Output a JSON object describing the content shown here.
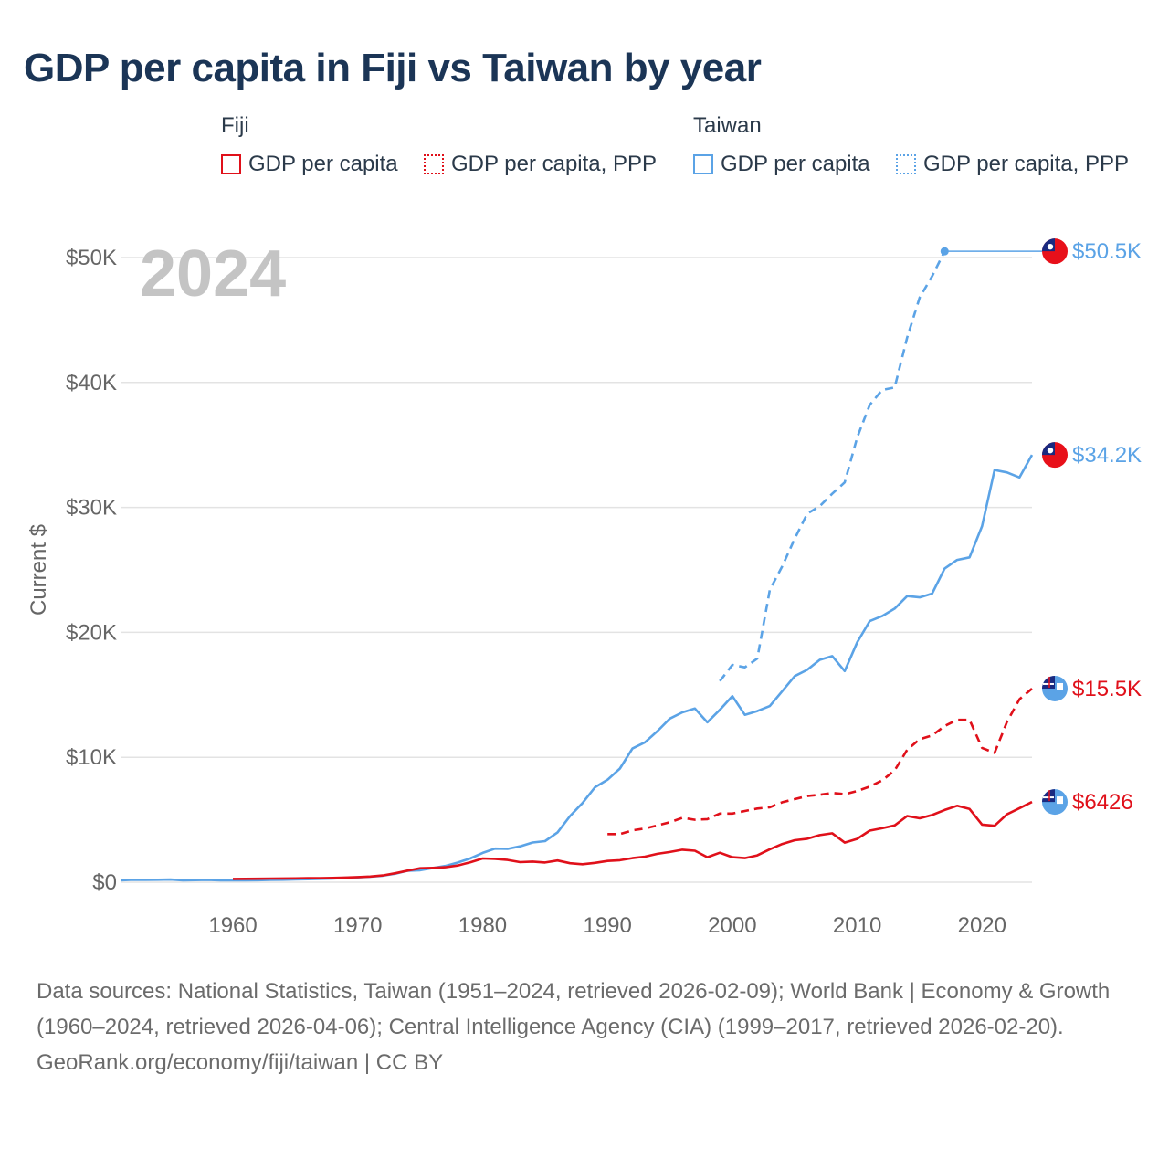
{
  "title": "GDP per capita in Fiji vs Taiwan by year",
  "legend": {
    "groups": [
      {
        "name": "Fiji",
        "color": "#e0101a",
        "items": [
          {
            "label": "GDP per capita",
            "style": "solid"
          },
          {
            "label": "GDP per capita, PPP",
            "style": "dotted"
          }
        ]
      },
      {
        "name": "Taiwan",
        "color": "#5ba3e6",
        "items": [
          {
            "label": "GDP per capita",
            "style": "solid"
          },
          {
            "label": "GDP per capita, PPP",
            "style": "dotted"
          }
        ]
      }
    ]
  },
  "year_label": "2024",
  "footer": {
    "sources": "Data sources: National Statistics, Taiwan (1951–2024, retrieved 2026-02-09); World Bank | Economy & Growth (1960–2024, retrieved 2026-04-06); Central Intelligence Agency (CIA) (1999–2017, retrieved 2026-02-20).",
    "credit": "GeoRank.org/economy/fiji/taiwan | CC BY"
  },
  "chart_data": {
    "type": "line",
    "title": "GDP per capita in Fiji vs Taiwan by year",
    "xlabel": "",
    "ylabel": "Current $",
    "xlim": [
      1951,
      2024
    ],
    "ylim": [
      0,
      50000
    ],
    "xticks": [
      1960,
      1970,
      1980,
      1990,
      2000,
      2010,
      2020
    ],
    "xtick_labels": [
      "1960",
      "1970",
      "1980",
      "1990",
      "2000",
      "2010",
      "2020"
    ],
    "yticks": [
      0,
      10000,
      20000,
      30000,
      40000,
      50000
    ],
    "ytick_labels": [
      "$0",
      "$10K",
      "$20K",
      "$30K",
      "$40K",
      "$50K"
    ],
    "grid": true,
    "series": [
      {
        "name": "Taiwan GDP per capita",
        "country": "Taiwan",
        "color": "#5ba3e6",
        "dash": "solid",
        "end_label": "$34.2K",
        "x": [
          1951,
          1952,
          1953,
          1954,
          1955,
          1956,
          1957,
          1958,
          1959,
          1960,
          1961,
          1962,
          1963,
          1964,
          1965,
          1966,
          1967,
          1968,
          1969,
          1970,
          1971,
          1972,
          1973,
          1974,
          1975,
          1976,
          1977,
          1978,
          1979,
          1980,
          1981,
          1982,
          1983,
          1984,
          1985,
          1986,
          1987,
          1988,
          1989,
          1990,
          1991,
          1992,
          1993,
          1994,
          1995,
          1996,
          1997,
          1998,
          1999,
          2000,
          2001,
          2002,
          2003,
          2004,
          2005,
          2006,
          2007,
          2008,
          2009,
          2010,
          2011,
          2012,
          2013,
          2014,
          2015,
          2016,
          2017,
          2018,
          2019,
          2020,
          2021,
          2022,
          2023,
          2024
        ],
        "y": [
          150,
          200,
          180,
          200,
          210,
          150,
          170,
          180,
          150,
          150,
          150,
          160,
          180,
          200,
          220,
          240,
          270,
          300,
          350,
          390,
          440,
          520,
          680,
          920,
          960,
          1130,
          1300,
          1570,
          1900,
          2350,
          2690,
          2670,
          2870,
          3180,
          3290,
          3990,
          5300,
          6340,
          7600,
          8200,
          9100,
          10700,
          11200,
          12100,
          13100,
          13600,
          13900,
          12800,
          13800,
          14900,
          13400,
          13700,
          14100,
          15300,
          16500,
          17000,
          17800,
          18100,
          16900,
          19200,
          20900,
          21300,
          21900,
          22900,
          22800,
          23100,
          25100,
          25800,
          26000,
          28500,
          33000,
          32800,
          32400,
          34200
        ]
      },
      {
        "name": "Taiwan GDP per capita, PPP",
        "country": "Taiwan",
        "color": "#5ba3e6",
        "dash": "dashed",
        "end_label": "$50.5K",
        "x": [
          1999,
          2000,
          2001,
          2002,
          2003,
          2004,
          2005,
          2006,
          2007,
          2008,
          2009,
          2010,
          2011,
          2012,
          2013,
          2014,
          2015,
          2016,
          2017
        ],
        "y": [
          16100,
          17400,
          17200,
          17900,
          23400,
          25300,
          27500,
          29500,
          30100,
          31100,
          32000,
          35600,
          38200,
          39400,
          39600,
          43600,
          46800,
          48500,
          50500
        ]
      },
      {
        "name": "Fiji GDP per capita",
        "country": "Fiji",
        "color": "#e0101a",
        "dash": "solid",
        "end_label": "$6426",
        "x": [
          1960,
          1961,
          1962,
          1963,
          1964,
          1965,
          1966,
          1967,
          1968,
          1969,
          1970,
          1971,
          1972,
          1973,
          1974,
          1975,
          1976,
          1977,
          1978,
          1979,
          1980,
          1981,
          1982,
          1983,
          1984,
          1985,
          1986,
          1987,
          1988,
          1989,
          1990,
          1991,
          1992,
          1993,
          1994,
          1995,
          1996,
          1997,
          1998,
          1999,
          2000,
          2001,
          2002,
          2003,
          2004,
          2005,
          2006,
          2007,
          2008,
          2009,
          2010,
          2011,
          2012,
          2013,
          2014,
          2015,
          2016,
          2017,
          2018,
          2019,
          2020,
          2021,
          2022,
          2023,
          2024
        ],
        "y": [
          260,
          270,
          280,
          290,
          300,
          310,
          320,
          330,
          340,
          370,
          410,
          450,
          540,
          720,
          930,
          1120,
          1150,
          1200,
          1340,
          1590,
          1900,
          1870,
          1780,
          1610,
          1650,
          1580,
          1740,
          1520,
          1440,
          1550,
          1700,
          1760,
          1930,
          2050,
          2270,
          2420,
          2600,
          2520,
          2000,
          2360,
          2000,
          1930,
          2150,
          2640,
          3060,
          3360,
          3480,
          3770,
          3920,
          3170,
          3470,
          4130,
          4320,
          4550,
          5300,
          5120,
          5380,
          5780,
          6120,
          5860,
          4610,
          4520,
          5440,
          5930,
          6426
        ]
      },
      {
        "name": "Fiji GDP per capita, PPP",
        "country": "Fiji",
        "color": "#e0101a",
        "dash": "dashed",
        "end_label": "$15.5K",
        "x": [
          1990,
          1991,
          1992,
          1993,
          1994,
          1995,
          1996,
          1997,
          1998,
          1999,
          2000,
          2001,
          2002,
          2003,
          2004,
          2005,
          2006,
          2007,
          2008,
          2009,
          2010,
          2011,
          2012,
          2013,
          2014,
          2015,
          2016,
          2017,
          2018,
          2019,
          2020,
          2021,
          2022,
          2023,
          2024
        ],
        "y": [
          3850,
          3850,
          4150,
          4300,
          4550,
          4800,
          5150,
          5000,
          5050,
          5500,
          5500,
          5700,
          5900,
          6000,
          6400,
          6650,
          6900,
          7000,
          7150,
          7050,
          7300,
          7650,
          8150,
          8950,
          10600,
          11450,
          11750,
          12500,
          13000,
          13000,
          10750,
          10350,
          12850,
          14650,
          15500
        ]
      }
    ]
  }
}
